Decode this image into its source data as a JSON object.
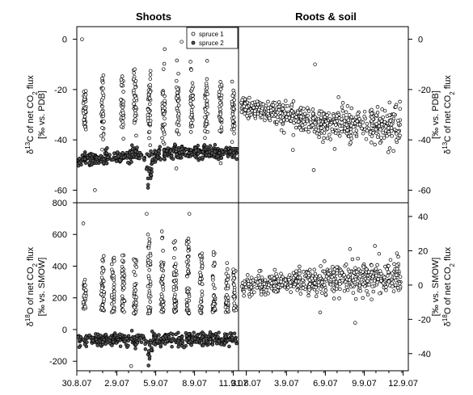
{
  "colors": {
    "axis": "#000000",
    "marker_stroke": "#000000",
    "marker_fill": "#ffffff",
    "marker_fill_series2": "#555555",
    "background": "#ffffff"
  },
  "chart_data": [
    {
      "id": "shoots_d13c",
      "type": "scatter",
      "title": "Shoots",
      "ylabel_lines": [
        "δ13C of net CO2 flux",
        "[‰ vs. PDB]"
      ],
      "ylim": [
        -65,
        5
      ],
      "yticks": [
        0,
        -20,
        -40,
        -60
      ],
      "xlim": [
        30.8,
        12.3
      ],
      "x_unit": "date (day.month.year)",
      "legend": {
        "position": "top-right",
        "entries": [
          "spruce 1",
          "spruce 2"
        ]
      },
      "series": [
        {
          "name": "spruce 1",
          "clusters": [
            {
              "x": 31.4,
              "center": -27,
              "spread": 5,
              "n": 35
            },
            {
              "x": 1.8,
              "center": -27,
              "spread": 7,
              "n": 35
            },
            {
              "x": 3.3,
              "center": -26,
              "spread": 6,
              "n": 35
            },
            {
              "x": 4.3,
              "center": -25,
              "spread": 6,
              "n": 35
            },
            {
              "x": 5.4,
              "center": -26,
              "spread": 7,
              "n": 40
            },
            {
              "x": 6.5,
              "center": -27,
              "spread": 8,
              "n": 40
            },
            {
              "x": 7.6,
              "center": -27,
              "spread": 7,
              "n": 35
            },
            {
              "x": 8.7,
              "center": -28,
              "spread": 7,
              "n": 35
            },
            {
              "x": 9.8,
              "center": -28,
              "spread": 7,
              "n": 35
            },
            {
              "x": 10.9,
              "center": -29,
              "spread": 7,
              "n": 35
            },
            {
              "x": 11.9,
              "center": -30,
              "spread": 6,
              "n": 30
            }
          ],
          "outliers": [
            {
              "x": 31.2,
              "y": 0
            },
            {
              "x": 7.9,
              "y": -1
            },
            {
              "x": 1.2,
              "y": -60
            }
          ]
        },
        {
          "name": "spruce 2",
          "baseline": [
            {
              "x": 30.9,
              "y": -48
            },
            {
              "x": 2.9,
              "y": -47
            },
            {
              "x": 4.5,
              "y": -46
            },
            {
              "x": 5.3,
              "y": -47
            },
            {
              "x": 7.0,
              "y": -45
            },
            {
              "x": 9.0,
              "y": -45
            },
            {
              "x": 12.1,
              "y": -45
            }
          ],
          "excursion": [
            {
              "x": 5.1,
              "y": -50
            },
            {
              "x": 5.35,
              "y": -57
            },
            {
              "x": 5.6,
              "y": -52
            }
          ],
          "n": 460
        }
      ]
    },
    {
      "id": "roots_d13c",
      "type": "scatter",
      "title": "Roots & soil",
      "ylabel_lines": [
        "δ13C of net CO2 flux",
        "[‰ vs. PDB]"
      ],
      "ylim": [
        -65,
        5
      ],
      "yticks": [
        0,
        -20,
        -40,
        -60
      ],
      "xlim": [
        31.2,
        13.3
      ],
      "series": [
        {
          "name": "roots & soil",
          "trend": [
            {
              "x": 31.4,
              "y": -27
            },
            {
              "x": 3.0,
              "y": -29
            },
            {
              "x": 5.0,
              "y": -31
            },
            {
              "x": 6.5,
              "y": -33
            },
            {
              "x": 8.5,
              "y": -34
            },
            {
              "x": 10.5,
              "y": -34
            },
            {
              "x": 12.7,
              "y": -34
            }
          ],
          "n": 620,
          "outliers": [
            {
              "x": 6.1,
              "y": -10
            },
            {
              "x": 6.0,
              "y": -52
            },
            {
              "x": 4.4,
              "y": -44
            }
          ]
        }
      ]
    },
    {
      "id": "shoots_d18o",
      "type": "scatter",
      "ylabel_lines": [
        "δ18O of net CO2 flux",
        "[‰ vs. SMOW]"
      ],
      "ylim": [
        -260,
        800
      ],
      "yticks": [
        800,
        600,
        400,
        200,
        0,
        -200
      ],
      "xlim": [
        30.8,
        12.3
      ],
      "xticks": [
        {
          "value": 30.8,
          "label": "30.8.07"
        },
        {
          "value": 2.9,
          "label": "2.9.07"
        },
        {
          "value": 5.9,
          "label": "5.9.07"
        },
        {
          "value": 8.9,
          "label": "8.9.07"
        },
        {
          "value": 11.9,
          "label": "11.9.07"
        }
      ],
      "series": [
        {
          "name": "spruce 1",
          "clusters": [
            {
              "x": 31.4,
              "bottom": 130,
              "top": 330,
              "n": 30
            },
            {
              "x": 1.8,
              "bottom": 120,
              "top": 470,
              "n": 40
            },
            {
              "x": 2.6,
              "bottom": 110,
              "top": 490,
              "n": 40
            },
            {
              "x": 3.4,
              "bottom": 110,
              "top": 470,
              "n": 40
            },
            {
              "x": 4.3,
              "bottom": 100,
              "top": 460,
              "n": 40
            },
            {
              "x": 5.4,
              "bottom": 100,
              "top": 600,
              "n": 45
            },
            {
              "x": 6.4,
              "bottom": 110,
              "top": 620,
              "n": 45
            },
            {
              "x": 7.4,
              "bottom": 110,
              "top": 560,
              "n": 45
            },
            {
              "x": 8.4,
              "bottom": 100,
              "top": 580,
              "n": 45
            },
            {
              "x": 9.4,
              "bottom": 100,
              "top": 520,
              "n": 45
            },
            {
              "x": 10.4,
              "bottom": 110,
              "top": 490,
              "n": 40
            },
            {
              "x": 11.4,
              "bottom": 110,
              "top": 430,
              "n": 40
            },
            {
              "x": 12.0,
              "bottom": 120,
              "top": 380,
              "n": 30
            }
          ],
          "outliers": [
            {
              "x": 31.3,
              "y": 670
            },
            {
              "x": 5.2,
              "y": 730
            },
            {
              "x": 8.5,
              "y": 730
            },
            {
              "x": 4.0,
              "y": -230
            }
          ]
        },
        {
          "name": "spruce 2",
          "baseline": [
            {
              "x": 30.9,
              "y": -62
            },
            {
              "x": 12.1,
              "y": -62
            }
          ],
          "excursion": [
            {
              "x": 5.0,
              "y": -110
            },
            {
              "x": 5.35,
              "y": -190
            },
            {
              "x": 5.7,
              "y": -120
            }
          ],
          "n": 420
        }
      ]
    },
    {
      "id": "roots_d18o",
      "type": "scatter",
      "ylabel_lines": [
        "δ18O of net CO2 flux",
        "[‰ vs. SMOW]"
      ],
      "ylim": [
        -50,
        48
      ],
      "yticks": [
        40,
        20,
        0,
        -20,
        -40
      ],
      "xlim": [
        31.2,
        13.3
      ],
      "xticks": [
        {
          "value": 31.8,
          "label": "31.8.07"
        },
        {
          "value": 3.9,
          "label": "3.9.07"
        },
        {
          "value": 6.9,
          "label": "6.9.07"
        },
        {
          "value": 9.9,
          "label": "9.9.07"
        },
        {
          "value": 12.9,
          "label": "12.9.07"
        }
      ],
      "series": [
        {
          "name": "roots & soil",
          "trend": [
            {
              "x": 31.4,
              "y": -1
            },
            {
              "x": 3.0,
              "y": 1
            },
            {
              "x": 5.0,
              "y": 2
            },
            {
              "x": 7.0,
              "y": 3
            },
            {
              "x": 9.0,
              "y": 4
            },
            {
              "x": 12.7,
              "y": 4
            }
          ],
          "n": 560,
          "outliers": [
            {
              "x": 8.8,
              "y": 21
            },
            {
              "x": 9.2,
              "y": -22
            },
            {
              "x": 6.5,
              "y": -16
            }
          ]
        }
      ]
    }
  ]
}
